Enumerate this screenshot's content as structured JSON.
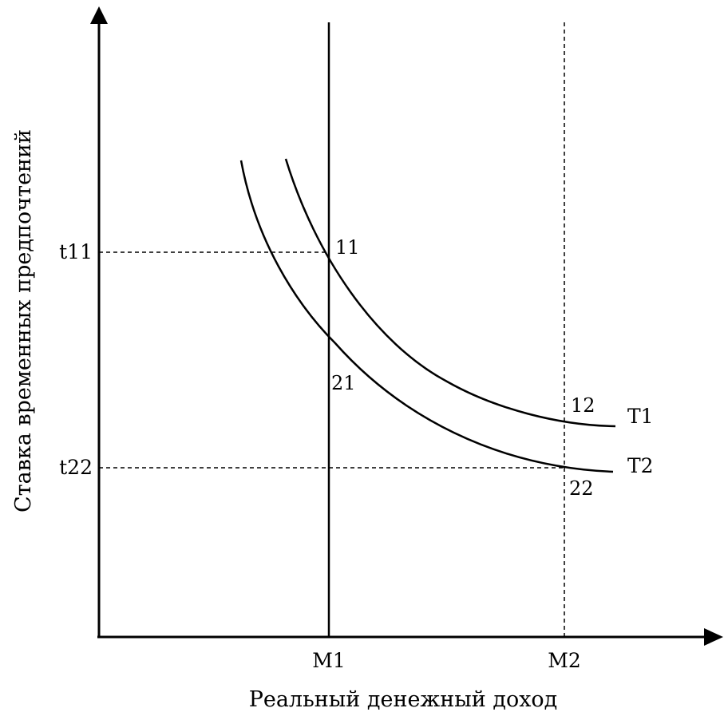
{
  "diagram": {
    "y_axis_title": "Ставка временных предпочтений",
    "x_axis_title": "Реальный денежный доход",
    "x_ticks": [
      "M1",
      "M2"
    ],
    "y_ticks": [
      "t11",
      "t22"
    ],
    "curves": [
      {
        "name": "T1"
      },
      {
        "name": "T2"
      }
    ],
    "points": {
      "p11": "11",
      "p12": "12",
      "p21": "21",
      "p22": "22"
    },
    "colors": {
      "line": "#000000",
      "background": "#ffffff"
    }
  }
}
